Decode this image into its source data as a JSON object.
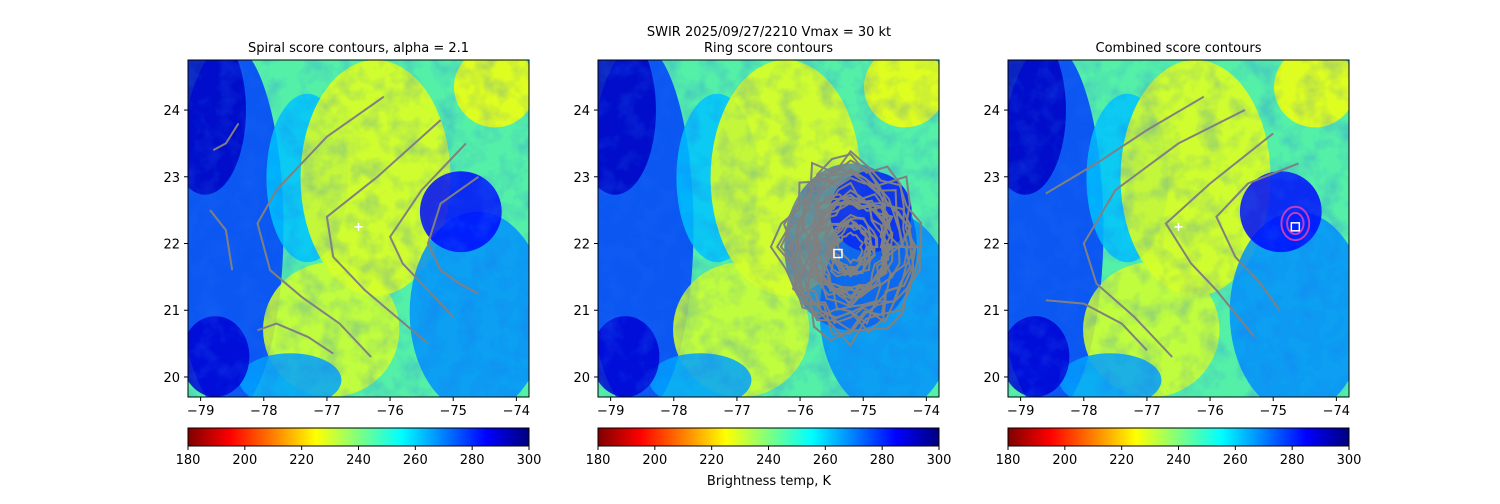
{
  "figure": {
    "suptitle_line1": "SWIR  2025/09/27/2210    Vmax = 30 kt",
    "colorbar_label": "Brightness temp, K"
  },
  "colors": {
    "contour_gray": "#808080",
    "contour_magenta": "#c03cc0",
    "marker_white": "#ffffff"
  },
  "chart_data": [
    {
      "type": "heatmap",
      "title": "Spiral score contours, alpha =  2.1",
      "xlim": [
        -79.2,
        -73.8
      ],
      "ylim": [
        19.7,
        24.75
      ],
      "xticks": [
        -79,
        -78,
        -77,
        -76,
        -75,
        -74
      ],
      "xtick_labels": [
        "−79",
        "−78",
        "−77",
        "−76",
        "−75",
        "−74"
      ],
      "yticks": [
        20,
        21,
        22,
        23,
        24
      ],
      "ytick_labels": [
        "20",
        "21",
        "22",
        "23",
        "24"
      ],
      "colormap": "jet_r",
      "color_range": [
        180,
        300
      ],
      "colorbar_ticks": [
        180,
        200,
        220,
        240,
        260,
        280,
        300
      ],
      "marker": {
        "shape": "plus",
        "lon": -76.5,
        "lat": 22.25
      },
      "contours": [
        {
          "color": "gray",
          "points": [
            [
              -78.4,
              23.8
            ],
            [
              -78.6,
              23.5
            ],
            [
              -78.8,
              23.4
            ]
          ]
        },
        {
          "color": "gray",
          "points": [
            [
              -78.85,
              22.5
            ],
            [
              -78.6,
              22.2
            ],
            [
              -78.5,
              21.6
            ]
          ]
        },
        {
          "color": "gray",
          "points": [
            [
              -76.1,
              24.2
            ],
            [
              -77.0,
              23.6
            ],
            [
              -77.8,
              22.8
            ],
            [
              -78.1,
              22.3
            ],
            [
              -77.9,
              21.6
            ],
            [
              -77.4,
              21.2
            ],
            [
              -76.8,
              20.8
            ],
            [
              -76.3,
              20.3
            ]
          ]
        },
        {
          "color": "gray",
          "points": [
            [
              -75.2,
              23.85
            ],
            [
              -76.2,
              23.0
            ],
            [
              -77.0,
              22.4
            ],
            [
              -76.9,
              21.8
            ],
            [
              -76.4,
              21.3
            ],
            [
              -75.9,
              20.9
            ],
            [
              -75.4,
              20.5
            ]
          ]
        },
        {
          "color": "gray",
          "points": [
            [
              -74.8,
              23.5
            ],
            [
              -75.5,
              22.8
            ],
            [
              -76.0,
              22.1
            ],
            [
              -75.8,
              21.7
            ],
            [
              -75.4,
              21.3
            ],
            [
              -75.0,
              20.9
            ]
          ]
        },
        {
          "color": "gray",
          "points": [
            [
              -74.6,
              23.0
            ],
            [
              -75.2,
              22.6
            ],
            [
              -75.4,
              22.0
            ],
            [
              -75.2,
              21.6
            ],
            [
              -74.9,
              21.4
            ],
            [
              -74.6,
              21.25
            ]
          ]
        },
        {
          "color": "gray",
          "points": [
            [
              -78.1,
              20.7
            ],
            [
              -77.8,
              20.8
            ],
            [
              -77.3,
              20.6
            ],
            [
              -76.9,
              20.35
            ]
          ]
        }
      ]
    },
    {
      "type": "heatmap",
      "title": "Ring score contours",
      "xlim": [
        -79.2,
        -73.8
      ],
      "ylim": [
        19.7,
        24.75
      ],
      "xticks": [
        -79,
        -78,
        -77,
        -76,
        -75,
        -74
      ],
      "xtick_labels": [
        "−79",
        "−78",
        "−77",
        "−76",
        "−75",
        "−74"
      ],
      "yticks": [
        20,
        21,
        22,
        23,
        24
      ],
      "ytick_labels": [
        "20",
        "21",
        "22",
        "23",
        "24"
      ],
      "colormap": "jet_r",
      "color_range": [
        180,
        300
      ],
      "colorbar_ticks": [
        180,
        200,
        220,
        240,
        260,
        280,
        300
      ],
      "marker": {
        "shape": "square",
        "lon": -75.4,
        "lat": 21.85
      },
      "contour_region": {
        "center_lon": -75.2,
        "center_lat": 21.95,
        "radius_lon": 1.05,
        "radius_lat": 1.25
      }
    },
    {
      "type": "heatmap",
      "title": "Combined score contours",
      "xlim": [
        -79.2,
        -73.8
      ],
      "ylim": [
        19.7,
        24.75
      ],
      "xticks": [
        -79,
        -78,
        -77,
        -76,
        -75,
        -74
      ],
      "xtick_labels": [
        "−79",
        "−78",
        "−77",
        "−76",
        "−75",
        "−74"
      ],
      "yticks": [
        20,
        21,
        22,
        23,
        24
      ],
      "ytick_labels": [
        "20",
        "21",
        "22",
        "23",
        "24"
      ],
      "colormap": "jet_r",
      "color_range": [
        180,
        300
      ],
      "colorbar_ticks": [
        180,
        200,
        220,
        240,
        260,
        280,
        300
      ],
      "marker_plus": {
        "lon": -76.5,
        "lat": 22.25
      },
      "marker": {
        "shape": "square",
        "lon": -74.65,
        "lat": 22.25
      },
      "contours": [
        {
          "color": "gray",
          "points": [
            [
              -76.1,
              24.2
            ],
            [
              -77.0,
              23.7
            ],
            [
              -77.8,
              23.2
            ],
            [
              -78.6,
              22.75
            ]
          ]
        },
        {
          "color": "gray",
          "points": [
            [
              -75.45,
              24.0
            ],
            [
              -76.5,
              23.5
            ],
            [
              -77.5,
              22.8
            ],
            [
              -78.0,
              22.0
            ],
            [
              -77.8,
              21.4
            ],
            [
              -77.2,
              20.9
            ],
            [
              -76.6,
              20.3
            ]
          ]
        },
        {
          "color": "gray",
          "points": [
            [
              -75.0,
              23.65
            ],
            [
              -76.0,
              22.9
            ],
            [
              -76.7,
              22.3
            ],
            [
              -76.3,
              21.7
            ],
            [
              -75.9,
              21.3
            ],
            [
              -75.3,
              20.6
            ]
          ]
        },
        {
          "color": "gray",
          "points": [
            [
              -74.6,
              23.2
            ],
            [
              -75.4,
              22.9
            ],
            [
              -75.9,
              22.4
            ],
            [
              -75.6,
              21.8
            ],
            [
              -75.2,
              21.4
            ],
            [
              -74.9,
              21.0
            ]
          ]
        },
        {
          "color": "gray",
          "points": [
            [
              -78.6,
              21.15
            ],
            [
              -78.0,
              21.1
            ],
            [
              -77.4,
              20.8
            ],
            [
              -77.0,
              20.4
            ]
          ]
        }
      ],
      "magenta_rings": [
        {
          "lon": -74.65,
          "lat": 22.3,
          "rx": 0.22,
          "ry": 0.25
        },
        {
          "lon": -74.65,
          "lat": 22.3,
          "rx": 0.13,
          "ry": 0.16
        }
      ]
    }
  ]
}
